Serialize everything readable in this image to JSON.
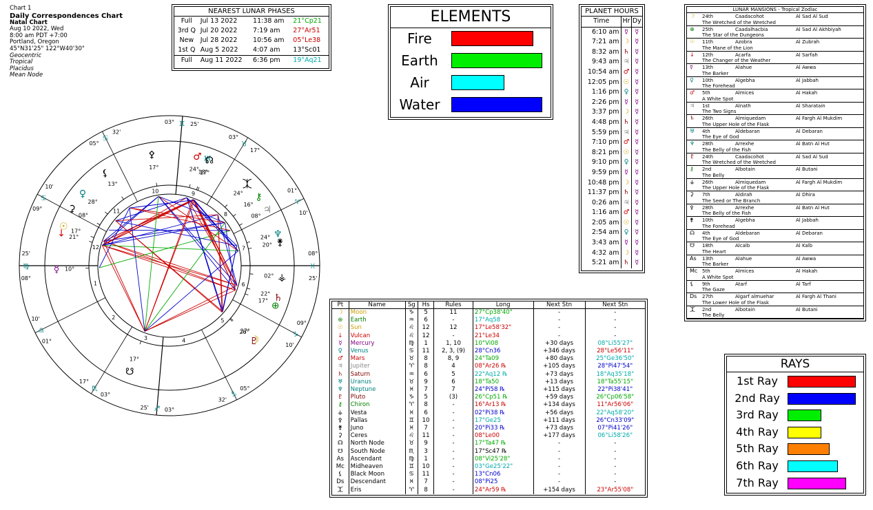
{
  "header": {
    "chart_no": "Chart 1",
    "title": "Daily Correspondences Chart",
    "subtitle": "Natal Chart",
    "date": "Aug 10 2022, Wed",
    "time": "8:00 am  PDT +7:00",
    "place": "Portland, Oregon",
    "coords": "45°N31'25\"  122°W40'30\"",
    "settings": [
      "Geocentric",
      "Tropical",
      "Placidus",
      "Mean Node"
    ]
  },
  "lunar": {
    "title": "NEAREST LUNAR PHASES",
    "rows": [
      {
        "phase": "Full",
        "date": "Jul 13 2022",
        "time": "11:38 am",
        "pos": "21°Cp21",
        "color": "#00aa00"
      },
      {
        "phase": "3rd Q",
        "date": "Jul 20 2022",
        "time": "7:19 am",
        "pos": "27°Ar51",
        "color": "#cc0000"
      },
      {
        "phase": "New",
        "date": "Jul 28 2022",
        "time": "10:56 am",
        "pos": "05°Le38",
        "color": "#cc0000"
      },
      {
        "phase": "1st Q",
        "date": "Aug 5 2022",
        "time": "4:07 am",
        "pos": "13°Sc01",
        "color": "#000000"
      },
      {
        "phase": "Full",
        "date": "Aug 11 2022",
        "time": "6:36 pm",
        "pos": "19°Aq21",
        "color": "#00aaaa"
      }
    ]
  },
  "elements": {
    "title": "ELEMENTS",
    "items": [
      {
        "label": "Fire",
        "value": 0.79,
        "color": "#ff0000"
      },
      {
        "label": "Earth",
        "value": 0.88,
        "color": "#00ee00"
      },
      {
        "label": "Air",
        "value": 0.51,
        "color": "#00ffff"
      },
      {
        "label": "Water",
        "value": 0.88,
        "color": "#0000ff"
      }
    ]
  },
  "hours": {
    "title": "PLANET HOURS",
    "headers": [
      "Time",
      "Hr",
      "Dy"
    ],
    "rows": [
      {
        "time": "6:10 am",
        "hr": "☿",
        "dy": "☿",
        "hc": "#800080"
      },
      {
        "time": "7:21 am",
        "hr": "☽",
        "dy": "☿",
        "hc": "#c8a000"
      },
      {
        "time": "8:32 am",
        "hr": "♄",
        "dy": "☿",
        "hc": "#800000"
      },
      {
        "time": "9:43 am",
        "hr": "♃",
        "dy": "☿",
        "hc": "#888888"
      },
      {
        "time": "10:54 am",
        "hr": "♂",
        "dy": "☿",
        "hc": "#cc0000"
      },
      {
        "time": "12:05 pm",
        "hr": "☉",
        "dy": "☿",
        "hc": "#c8a000"
      },
      {
        "time": "1:16 pm",
        "hr": "♀",
        "dy": "☿",
        "hc": "#008080"
      },
      {
        "time": "2:26 pm",
        "hr": "☿",
        "dy": "☿",
        "hc": "#800080"
      },
      {
        "time": "3:37 pm",
        "hr": "☽",
        "dy": "☿",
        "hc": "#c8a000"
      },
      {
        "time": "4:48 pm",
        "hr": "♄",
        "dy": "☿",
        "hc": "#800000"
      },
      {
        "time": "5:59 pm",
        "hr": "♃",
        "dy": "☿",
        "hc": "#888888"
      },
      {
        "time": "7:10 pm",
        "hr": "♂",
        "dy": "☿",
        "hc": "#cc0000"
      },
      {
        "time": "8:21 pm",
        "hr": "☉",
        "dy": "☿",
        "hc": "#c8a000"
      },
      {
        "time": "9:10 pm",
        "hr": "♀",
        "dy": "☿",
        "hc": "#008080"
      },
      {
        "time": "9:59 pm",
        "hr": "☿",
        "dy": "☿",
        "hc": "#800080"
      },
      {
        "time": "10:48 pm",
        "hr": "☽",
        "dy": "☿",
        "hc": "#c8a000"
      },
      {
        "time": "11:37 pm",
        "hr": "♄",
        "dy": "☿",
        "hc": "#800000"
      },
      {
        "time": "0:26 am",
        "hr": "♃",
        "dy": "☿",
        "hc": "#888888"
      },
      {
        "time": "1:16 am",
        "hr": "♂",
        "dy": "☿",
        "hc": "#cc0000"
      },
      {
        "time": "2:05 am",
        "hr": "☉",
        "dy": "☿",
        "hc": "#c8a000"
      },
      {
        "time": "2:54 am",
        "hr": "♀",
        "dy": "☿",
        "hc": "#008080"
      },
      {
        "time": "3:43 am",
        "hr": "☿",
        "dy": "☿",
        "hc": "#800080"
      },
      {
        "time": "4:32 am",
        "hr": "☽",
        "dy": "☿",
        "hc": "#c8a000"
      },
      {
        "time": "5:21 am",
        "hr": "♄",
        "dy": "☿",
        "hc": "#800000"
      }
    ]
  },
  "mansions": {
    "title": "LUNAR MANSIONS - Tropical Zodiac",
    "rows": [
      {
        "g": "☽",
        "gc": "#c8a000",
        "n": "24th",
        "a": "Caadacohot",
        "b": "Al Sad Al Sud",
        "d": "The Wretched of the Wretched"
      },
      {
        "g": "⊕",
        "gc": "#008000",
        "n": "25th",
        "a": "Caadalhacbia",
        "b": "Al Sad Al Akhbiyah",
        "d": "The Star of the Dungeons"
      },
      {
        "g": "☉",
        "gc": "#c8a000",
        "n": "11th",
        "a": "Azobra",
        "b": "Al Zubrah",
        "d": "The Mane of the Lion"
      },
      {
        "g": "↓",
        "gc": "#cc0000",
        "n": "12th",
        "a": "Acarfa",
        "b": "Al Sarfah",
        "d": "The Changer of the Weather"
      },
      {
        "g": "☿",
        "gc": "#800080",
        "n": "13th",
        "a": "Alahue",
        "b": "Al Awwa",
        "d": "The Barker"
      },
      {
        "g": "♀",
        "gc": "#008080",
        "n": "10th",
        "a": "Algebha",
        "b": "Al Jabbah",
        "d": "The Forehead"
      },
      {
        "g": "♂",
        "gc": "#cc0000",
        "n": "5th",
        "a": "Almices",
        "b": "Al Hakah",
        "d": "A White Spot"
      },
      {
        "g": "♃",
        "gc": "#888888",
        "n": "1st",
        "a": "Alnath",
        "b": "Al Sharatain",
        "d": "The Two Signs"
      },
      {
        "g": "♄",
        "gc": "#800000",
        "n": "26th",
        "a": "Almiquedam",
        "b": "Al Fargh Al Mukdim",
        "d": "The Upper Hole of the Flask"
      },
      {
        "g": "♅",
        "gc": "#008080",
        "n": "4th",
        "a": "Aldebaran",
        "b": "Al Debaran",
        "d": "The Eye of God"
      },
      {
        "g": "♆",
        "gc": "#008080",
        "n": "28th",
        "a": "Arrexhe",
        "b": "Al Batn Al Hut",
        "d": "The Belly of the Fish"
      },
      {
        "g": "♇",
        "gc": "#800000",
        "n": "24th",
        "a": "Caadacohot",
        "b": "Al Sad Al Sud",
        "d": "The Wretched of the Wretched"
      },
      {
        "g": "⚷",
        "gc": "#008000",
        "n": "2nd",
        "a": "Albotain",
        "b": "Al Butani",
        "d": "The Belly"
      },
      {
        "g": "⚶",
        "gc": "#000000",
        "n": "26th",
        "a": "Almiquedam",
        "b": "Al Fargh Al Mukdim",
        "d": "The Upper Hole of the Flask"
      },
      {
        "g": "⚳",
        "gc": "#000000",
        "n": "7th",
        "a": "Aldirah",
        "b": "Al Dhira",
        "d": "The Seed or The Branch"
      },
      {
        "g": "⚴",
        "gc": "#000000",
        "n": "28th",
        "a": "Arrexhe",
        "b": "Al Batn Al Hut",
        "d": "The Belly of the Fish"
      },
      {
        "g": "⚵",
        "gc": "#000000",
        "n": "10th",
        "a": "Algebha",
        "b": "Al Jabbah",
        "d": "The Forehead"
      },
      {
        "g": "☊",
        "gc": "#000000",
        "n": "4th",
        "a": "Aldebaran",
        "b": "Al Debaran",
        "d": "The Eye of God"
      },
      {
        "g": "☋",
        "gc": "#000000",
        "n": "18th",
        "a": "Alcalb",
        "b": "Al Kalb",
        "d": "The Heart"
      },
      {
        "g": "As",
        "gc": "#000000",
        "n": "13th",
        "a": "Alahue",
        "b": "Al Awwa",
        "d": "The Barker"
      },
      {
        "g": "Mc",
        "gc": "#000000",
        "n": "5th",
        "a": "Almices",
        "b": "Al Hakah",
        "d": "A White Spot"
      },
      {
        "g": "⚸",
        "gc": "#000000",
        "n": "9th",
        "a": "Atarf",
        "b": "Al Tarf",
        "d": "The Gaze"
      },
      {
        "g": "Ds",
        "gc": "#000000",
        "n": "27th",
        "a": "Algarf almuehar",
        "b": "Al Fargh Al Thani",
        "d": "The Lower Hole of the Flask"
      },
      {
        "g": "⯰",
        "gc": "#000000",
        "n": "2nd",
        "a": "Albotain",
        "b": "Al Butani",
        "d": "The Belly"
      }
    ]
  },
  "rays": {
    "title": "RAYS",
    "items": [
      {
        "label": "1st Ray",
        "value": 0.99,
        "color": "#ff0000"
      },
      {
        "label": "2nd Ray",
        "value": 0.99,
        "color": "#0000ff"
      },
      {
        "label": "3rd Ray",
        "value": 0.49,
        "color": "#00ee00"
      },
      {
        "label": "4th Ray",
        "value": 0.49,
        "color": "#ffff00"
      },
      {
        "label": "5th Ray",
        "value": 0.61,
        "color": "#ff8000"
      },
      {
        "label": "6th Ray",
        "value": 0.73,
        "color": "#00ffff"
      },
      {
        "label": "7th Ray",
        "value": 0.85,
        "color": "#ff00ff"
      }
    ]
  },
  "planets": {
    "headers": [
      "Pt",
      "Name",
      "Sg",
      "Hs",
      "Rules",
      "Long",
      "Next Stn",
      "Next Stn"
    ],
    "rows": [
      {
        "g": "☽",
        "name": "Moon",
        "sg": "♑",
        "hs": "5",
        "rules": "11",
        "long": "27°Cp38'40\"",
        "ns": "-",
        "ns2": "-",
        "c": "#c8a000",
        "lc": "#00aa00",
        "n2c": "#000000"
      },
      {
        "g": "⊕",
        "name": "Earth",
        "sg": "♒",
        "hs": "6",
        "rules": "-",
        "long": "17°Aq58",
        "ns": "-",
        "ns2": "-",
        "c": "#008000",
        "lc": "#00aaaa",
        "n2c": "#000000"
      },
      {
        "g": "☉",
        "name": "Sun",
        "sg": "♌",
        "hs": "12",
        "rules": "12",
        "long": "17°Le58'32\"",
        "ns": "-",
        "ns2": "-",
        "c": "#c8a000",
        "lc": "#cc0000",
        "n2c": "#000000"
      },
      {
        "g": "↓",
        "name": "Vulcan",
        "sg": "♌",
        "hs": "12",
        "rules": "-",
        "long": "21°Le34",
        "ns": "-",
        "ns2": "-",
        "c": "#cc0000",
        "lc": "#cc0000",
        "n2c": "#000000"
      },
      {
        "g": "☿",
        "name": "Mercury",
        "sg": "♍",
        "hs": "1",
        "rules": "1, 10",
        "long": "10°Vi08",
        "ns": "+30 days",
        "ns2": "08°Li55'27\"",
        "c": "#800080",
        "lc": "#00aa00",
        "n2c": "#00aaaa"
      },
      {
        "g": "♀",
        "name": "Venus",
        "sg": "♋",
        "hs": "11",
        "rules": "2, 3, (9)",
        "long": "28°Cn36",
        "ns": "+346 days",
        "ns2": "28°Le56'11\"",
        "c": "#008080",
        "lc": "#0000cc",
        "n2c": "#cc0000"
      },
      {
        "g": "♂",
        "name": "Mars",
        "sg": "♉",
        "hs": "8",
        "rules": "8, 9",
        "long": "24°Ta09",
        "ns": "+80 days",
        "ns2": "25°Ge36'50\"",
        "c": "#cc0000",
        "lc": "#00aa00",
        "n2c": "#00aaaa"
      },
      {
        "g": "♃",
        "name": "Jupiter",
        "sg": "♈",
        "hs": "8",
        "rules": "4",
        "long": "08°Ar26 ℞",
        "ns": "+105 days",
        "ns2": "28°Pi47'54\"",
        "c": "#888888",
        "lc": "#cc0000",
        "n2c": "#0000cc"
      },
      {
        "g": "♄",
        "name": "Saturn",
        "sg": "♒",
        "hs": "6",
        "rules": "5",
        "long": "22°Aq12 ℞",
        "ns": "+73 days",
        "ns2": "18°Aq35'18\"",
        "c": "#800000",
        "lc": "#00aaaa",
        "n2c": "#00aaaa"
      },
      {
        "g": "♅",
        "name": "Uranus",
        "sg": "♉",
        "hs": "9",
        "rules": "6",
        "long": "18°Ta50",
        "ns": "+13 days",
        "ns2": "18°Ta55'15\"",
        "c": "#008080",
        "lc": "#00aa00",
        "n2c": "#00aa00"
      },
      {
        "g": "♆",
        "name": "Neptune",
        "sg": "♓",
        "hs": "7",
        "rules": "7",
        "long": "24°Pi58 ℞",
        "ns": "+115 days",
        "ns2": "22°Pi38'41\"",
        "c": "#008080",
        "lc": "#0000cc",
        "n2c": "#0000cc"
      },
      {
        "g": "♇",
        "name": "Pluto",
        "sg": "♑",
        "hs": "5",
        "rules": "(3)",
        "long": "26°Cp51 ℞",
        "ns": "+59 days",
        "ns2": "26°Cp06'58\"",
        "c": "#800000",
        "lc": "#00aa00",
        "n2c": "#00aa00"
      },
      {
        "g": "⚷",
        "name": "Chiron",
        "sg": "♈",
        "hs": "8",
        "rules": "-",
        "long": "16°Ar13 ℞",
        "ns": "+134 days",
        "ns2": "11°Ar56'06\"",
        "c": "#008000",
        "lc": "#cc0000",
        "n2c": "#cc0000"
      },
      {
        "g": "⚶",
        "name": "Vesta",
        "sg": "♓",
        "hs": "6",
        "rules": "-",
        "long": "02°Pi38 ℞",
        "ns": "+56 days",
        "ns2": "22°Aq58'20\"",
        "c": "#000000",
        "lc": "#0000cc",
        "n2c": "#00aaaa"
      },
      {
        "g": "⚴",
        "name": "Pallas",
        "sg": "♊",
        "hs": "10",
        "rules": "-",
        "long": "17°Ge25",
        "ns": "+111 days",
        "ns2": "26°Cn33'09\"",
        "c": "#000000",
        "lc": "#00aaaa",
        "n2c": "#0000cc"
      },
      {
        "g": "⚵",
        "name": "Juno",
        "sg": "♓",
        "hs": "7",
        "rules": "-",
        "long": "20°Pi33 ℞",
        "ns": "+73 days",
        "ns2": "07°Pi41'26\"",
        "c": "#000000",
        "lc": "#0000cc",
        "n2c": "#0000cc"
      },
      {
        "g": "⚳",
        "name": "Ceres",
        "sg": "♌",
        "hs": "11",
        "rules": "-",
        "long": "08°Le00",
        "ns": "+177 days",
        "ns2": "06°Li58'26\"",
        "c": "#000000",
        "lc": "#cc0000",
        "n2c": "#00aaaa"
      },
      {
        "g": "☊",
        "name": "North Node",
        "sg": "♉",
        "hs": "9",
        "rules": "-",
        "long": "17°Ta47 ℞",
        "ns": "-",
        "ns2": "-",
        "c": "#000000",
        "lc": "#00aa00",
        "n2c": "#000000"
      },
      {
        "g": "☋",
        "name": "South Node",
        "sg": "♏",
        "hs": "3",
        "rules": "-",
        "long": "17°Sc47 ℞",
        "ns": "-",
        "ns2": "-",
        "c": "#000000",
        "lc": "#000000",
        "n2c": "#000000"
      },
      {
        "g": "As",
        "name": "Ascendant",
        "sg": "♍",
        "hs": "1",
        "rules": "-",
        "long": "08°Vi25'28\"",
        "ns": "-",
        "ns2": "-",
        "c": "#000000",
        "lc": "#00aa00",
        "n2c": "#000000"
      },
      {
        "g": "Mc",
        "name": "Midheaven",
        "sg": "♊",
        "hs": "10",
        "rules": "-",
        "long": "03°Ge25'22\"",
        "ns": "-",
        "ns2": "-",
        "c": "#000000",
        "lc": "#00aaaa",
        "n2c": "#000000"
      },
      {
        "g": "⚸",
        "name": "Black Moon",
        "sg": "♋",
        "hs": "11",
        "rules": "-",
        "long": "13°Cn06",
        "ns": "-",
        "ns2": "-",
        "c": "#000000",
        "lc": "#0000cc",
        "n2c": "#000000"
      },
      {
        "g": "Ds",
        "name": "Descendant",
        "sg": "♓",
        "hs": "7",
        "rules": "-",
        "long": "08°Pi25",
        "ns": "-",
        "ns2": "-",
        "c": "#000000",
        "lc": "#0000cc",
        "n2c": "#000000"
      },
      {
        "g": "⯰",
        "name": "Eris",
        "sg": "♈",
        "hs": "8",
        "rules": "-",
        "long": "24°Ar59 ℞",
        "ns": "+154 days",
        "ns2": "23°Ar55'08\"",
        "c": "#000000",
        "lc": "#cc0000",
        "n2c": "#cc0000"
      }
    ]
  },
  "wheel": {
    "ascendant_deg": 158.42,
    "mc_deg": 63.42,
    "house_cusps_deg": [
      158.42,
      185.0,
      217.0,
      243.42,
      275.0,
      310.0,
      338.42,
      5.0,
      37.0,
      63.42,
      95.0,
      130.0
    ],
    "house_numbers": [
      "1",
      "2",
      "3",
      "4",
      "5",
      "6",
      "7",
      "8",
      "9",
      "10",
      "11",
      "12"
    ],
    "sign_glyphs": [
      "♈",
      "♉",
      "♊",
      "♋",
      "♌",
      "♍",
      "♎",
      "♏",
      "♐",
      "♑",
      "♒",
      "♓"
    ],
    "cusp_labels": [
      {
        "deg": "08°",
        "sign": "♍",
        "min": "25'"
      },
      {
        "deg": "01°",
        "sign": "♎",
        "min": "10'"
      },
      {
        "deg": "03°",
        "sign": "♏",
        "min": "17°"
      },
      {
        "deg": "03°",
        "sign": "♐",
        "min": "25'"
      },
      {
        "deg": "05°",
        "sign": "♑",
        "min": "32'"
      },
      {
        "deg": "09°",
        "sign": "♑",
        "min": "10'"
      },
      {
        "deg": "08°",
        "sign": "♓",
        "min": "25'"
      },
      {
        "deg": "01°",
        "sign": "♈",
        "min": "10'"
      },
      {
        "deg": "03°",
        "sign": "♉",
        "min": "17°"
      },
      {
        "deg": "03°",
        "sign": "♊",
        "min": "25'"
      },
      {
        "deg": "05°",
        "sign": "♋",
        "min": "32'"
      },
      {
        "deg": "09°",
        "sign": "♋",
        "min": "10'"
      }
    ],
    "bodies": [
      {
        "glyph": "☽",
        "lon": 297.64,
        "color": "#c8a000",
        "label": "27°"
      },
      {
        "glyph": "⊕",
        "lon": 317.97,
        "color": "#008000",
        "label": "17°"
      },
      {
        "glyph": "☉",
        "lon": 137.98,
        "color": "#c8a000",
        "label": "17°"
      },
      {
        "glyph": "↓",
        "lon": 141.57,
        "color": "#cc0000",
        "label": "21°"
      },
      {
        "glyph": "☿",
        "lon": 160.13,
        "color": "#800080",
        "label": "10°"
      },
      {
        "glyph": "♀",
        "lon": 118.6,
        "color": "#008080",
        "label": "28°"
      },
      {
        "glyph": "♂",
        "lon": 54.15,
        "color": "#cc0000",
        "label": "24°"
      },
      {
        "glyph": "♃",
        "lon": 8.43,
        "color": "#888888",
        "label": "08°"
      },
      {
        "glyph": "♄",
        "lon": 322.2,
        "color": "#800000",
        "label": "22°"
      },
      {
        "glyph": "♅",
        "lon": 48.83,
        "color": "#008080",
        "label": "18°"
      },
      {
        "glyph": "♆",
        "lon": 354.97,
        "color": "#008080",
        "label": "24°"
      },
      {
        "glyph": "♇",
        "lon": 296.85,
        "color": "#800000",
        "label": "26°"
      },
      {
        "glyph": "⚷",
        "lon": 16.22,
        "color": "#008000",
        "label": "16°"
      },
      {
        "glyph": "⚶",
        "lon": 332.63,
        "color": "#000000",
        "label": "02°"
      },
      {
        "glyph": "⚴",
        "lon": 77.42,
        "color": "#000000",
        "label": "17°"
      },
      {
        "glyph": "⚵",
        "lon": 350.55,
        "color": "#000000",
        "label": "20°"
      },
      {
        "glyph": "⚳",
        "lon": 128.0,
        "color": "#000000",
        "label": "08°"
      },
      {
        "glyph": "☊",
        "lon": 47.78,
        "color": "#000000",
        "label": "17°"
      },
      {
        "glyph": "☋",
        "lon": 227.78,
        "color": "#000000",
        "label": "17°"
      },
      {
        "glyph": "⚸",
        "lon": 103.1,
        "color": "#000000",
        "label": "13°"
      },
      {
        "glyph": "⯰",
        "lon": 24.98,
        "color": "#000000",
        "label": "24°"
      }
    ]
  }
}
